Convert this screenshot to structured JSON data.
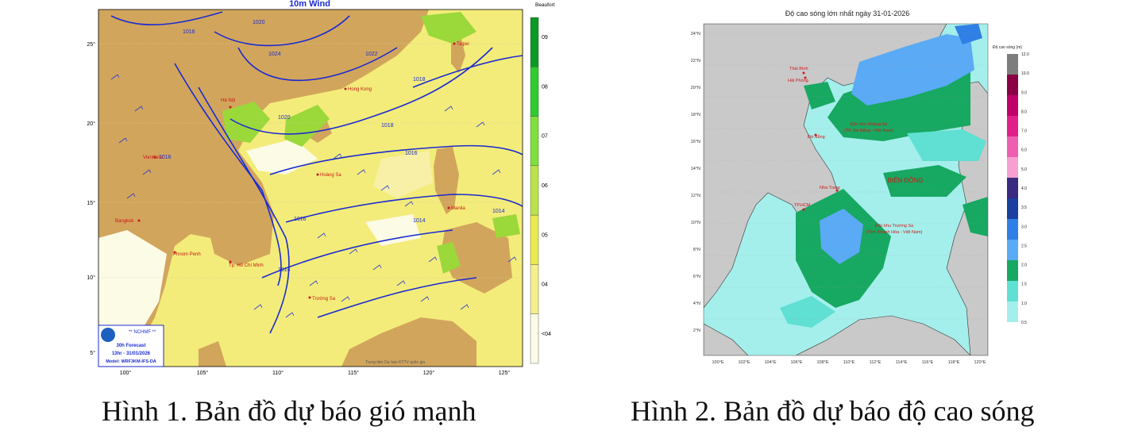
{
  "figure1": {
    "title": "10m Wind",
    "colorbar": {
      "unit": "Beaufort",
      "levels": [
        "09",
        "08",
        "07",
        "06",
        "05",
        "04",
        "<04"
      ],
      "colors": [
        "#0a9a25",
        "#2ecc2e",
        "#7ee03a",
        "#b9e34a",
        "#e9ea4e",
        "#f5ef8a",
        "#fcfbe6"
      ]
    },
    "lat_labels": [
      "25°",
      "20°",
      "15°",
      "10°",
      "5°"
    ],
    "lon_labels": [
      "100°",
      "105°",
      "110°",
      "115°",
      "120°",
      "125°"
    ],
    "isobar_labels": [
      "1016",
      "1020",
      "1024",
      "1022",
      "1020",
      "1018",
      "1016",
      "1016",
      "1016",
      "1014",
      "1014",
      "1014",
      "1018"
    ],
    "places": [
      "Hong Kong",
      "Taipei",
      "Hà Nội",
      "Vientiane",
      "Bangkok",
      "Phnom Penh",
      "Tp. Hồ Chí Minh",
      "Hoàng Sa",
      "Trường Sa",
      "Manila"
    ],
    "logo": {
      "org": "** NCHMF **",
      "forecast": "30h Forecast",
      "valid": "13hr - 31/01/2026",
      "model": "Model: WRF3KM-IFS-DA"
    },
    "credit": "Trung tâm Dự báo KTTV quốc gia",
    "caption": "Hình 1. Bản đồ dự báo gió mạnh"
  },
  "figure2": {
    "title": "Độ cao sóng lớn nhất ngày 31-01-2026",
    "colorbar": {
      "unit": "Độ cao sóng (m)",
      "ticks": [
        "12.0",
        "10.0",
        "9.0",
        "8.0",
        "7.0",
        "6.0",
        "5.0",
        "4.0",
        "3.5",
        "3.0",
        "2.5",
        "2.0",
        "1.5",
        "1.0",
        "0.5"
      ],
      "colors": [
        "#7d7d7d",
        "#8b0045",
        "#c0006a",
        "#e0208a",
        "#ef5fb0",
        "#f7a0d0",
        "#3a2a80",
        "#1b3fa0",
        "#2f7fe6",
        "#5aaaf5",
        "#17a862",
        "#5fe0d2",
        "#a4efec"
      ]
    },
    "lat_labels": [
      "24°N",
      "22°N",
      "20°N",
      "18°N",
      "16°N",
      "14°N",
      "12°N",
      "10°N",
      "8°N",
      "6°N",
      "4°N",
      "2°N"
    ],
    "lon_labels": [
      "100°E",
      "102°E",
      "104°E",
      "106°E",
      "108°E",
      "110°E",
      "112°E",
      "114°E",
      "116°E",
      "118°E",
      "120°E"
    ],
    "places": [
      "Thái Bình",
      "Hải Phòng",
      "Đà Nẵng",
      "Nha Trang",
      "TP.HCM"
    ],
    "sea_labels": [
      "Đặc khu Hoàng Sa",
      "(TP. Đà Nẵng - Việt Nam)",
      "BIỂN ĐÔNG",
      "Đặc khu Trường Sa",
      "(Tỉnh Khánh Hòa - Việt Nam)"
    ],
    "caption": "Hình 2. Bản đồ dự báo độ cao sóng"
  }
}
